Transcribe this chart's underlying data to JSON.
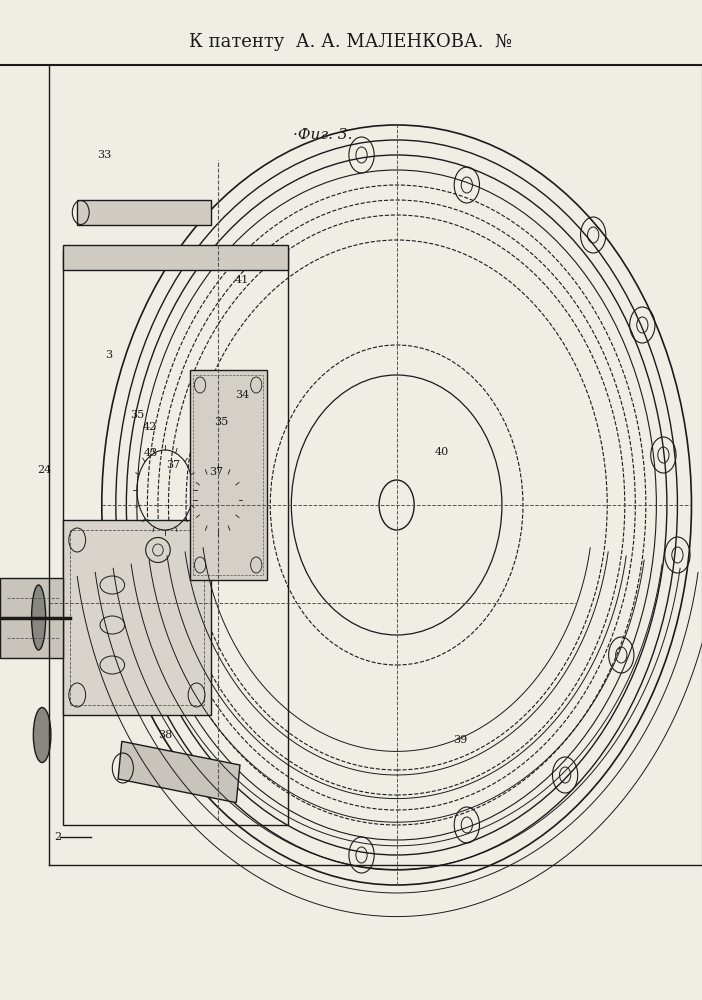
{
  "title_text": "К патенту  А. А. МАЛЕНКОВА.  №",
  "fig_label": "·Фиг. 3.",
  "bg_color": "#f0ede5",
  "line_color": "#1a1a1a",
  "dash_color": "#555555",
  "canvas_xlim": [
    0,
    1
  ],
  "canvas_ylim": [
    0,
    1
  ]
}
